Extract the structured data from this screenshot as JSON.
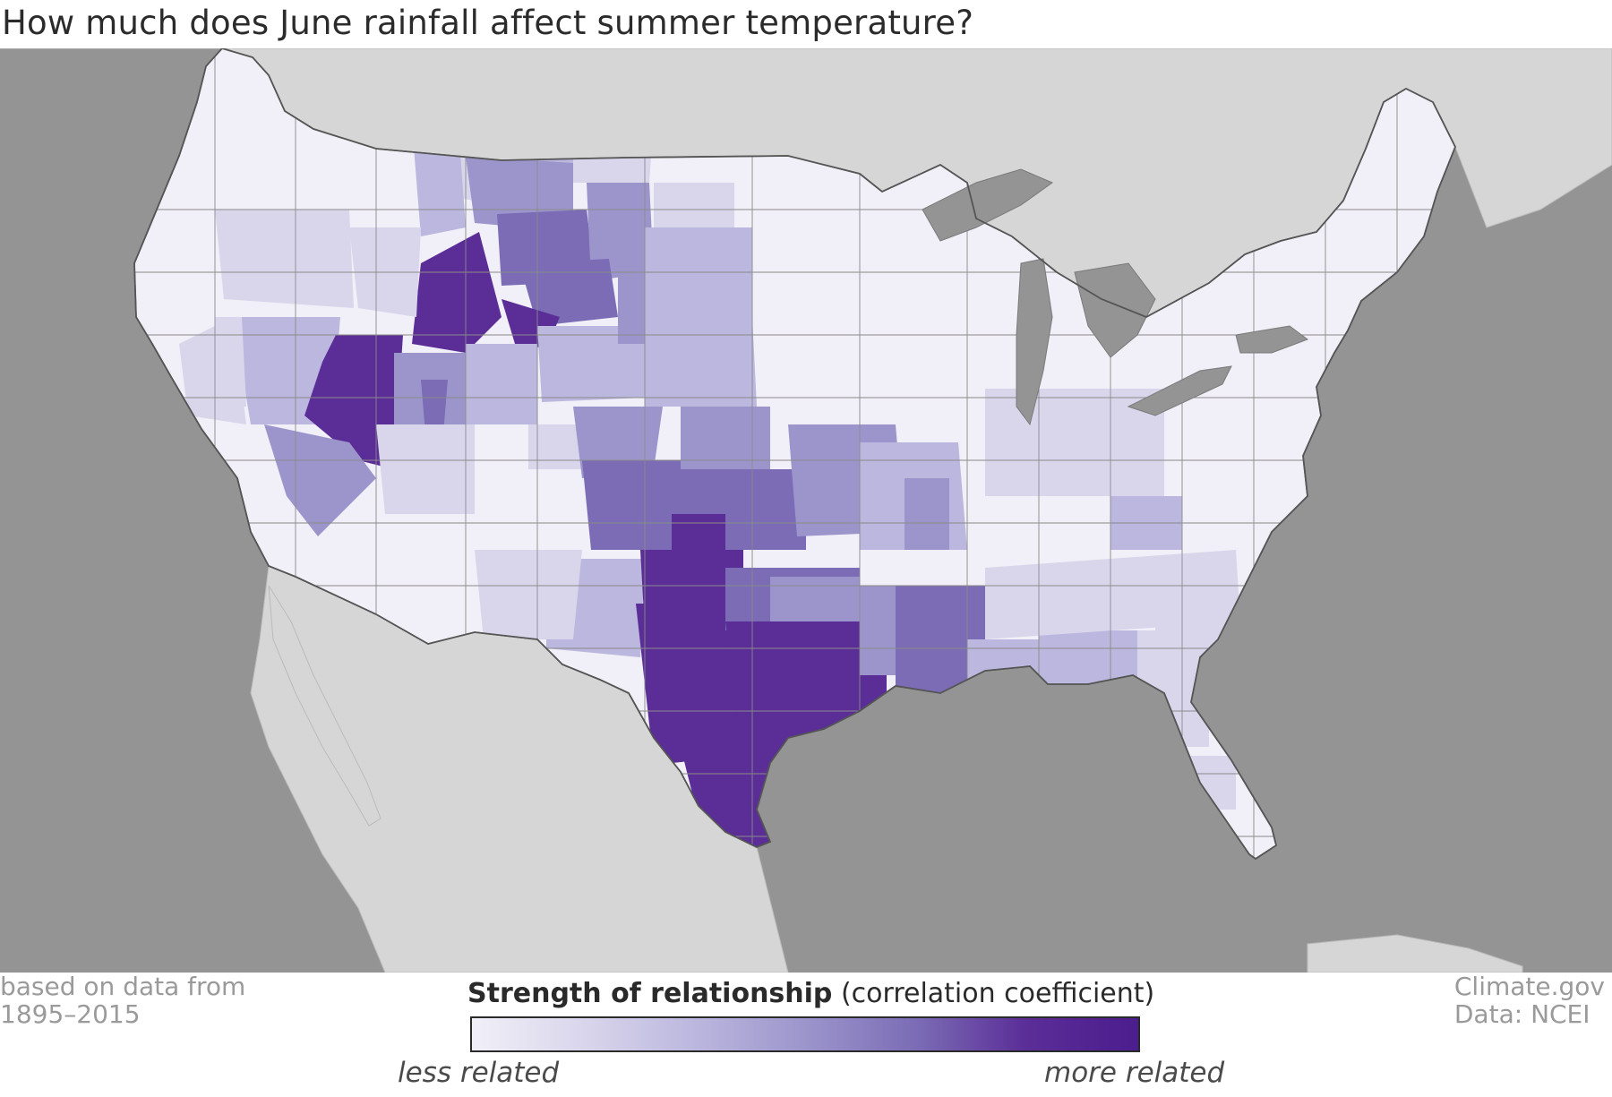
{
  "title": "How much does June rainfall affect summer temperature?",
  "source_note": {
    "line1": "based on data from",
    "line2": "1895–2015"
  },
  "credits": {
    "line1": "Climate.gov",
    "line2": "Data: NCEI"
  },
  "legend": {
    "title_bold": "Strength of relationship",
    "title_rest": "(correlation coefficient)",
    "low_label": "less related",
    "high_label": "more related",
    "colors": [
      "#f1eff7",
      "#d9d6ec",
      "#bcb7de",
      "#9c95cc",
      "#7b6cb5",
      "#5a2d97",
      "#4b1d8e"
    ]
  },
  "colors": {
    "ocean": "#949494",
    "neighbor_land": "#d6d6d6",
    "division_border": "#6e6e6e",
    "very_low": "#f1eff7",
    "low": "#d9d6ec",
    "medium_low": "#bcb7de",
    "medium": "#9c95cc",
    "medium_high": "#7b6cb5",
    "high": "#5a2d97"
  }
}
